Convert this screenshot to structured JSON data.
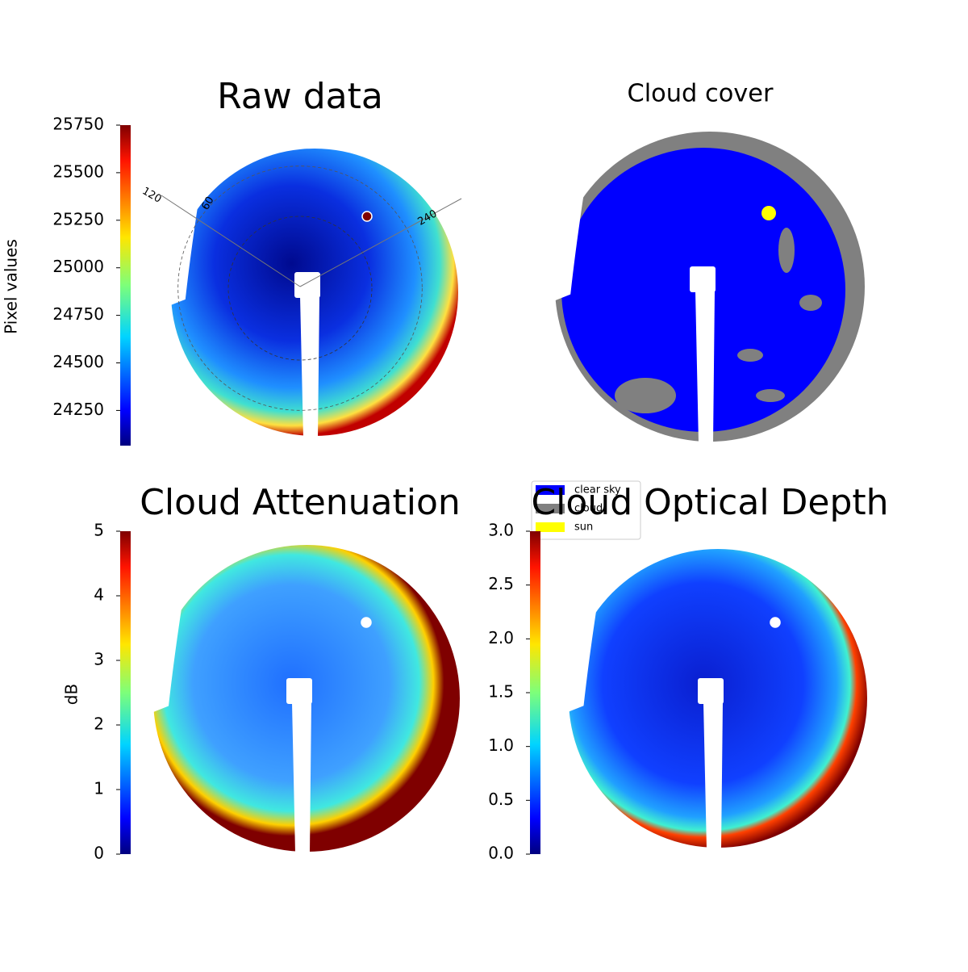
{
  "chart_data": [
    {
      "type": "colormap-image",
      "title": "Raw data",
      "colorbar_label": "Pixel values",
      "colormap": "jet",
      "ylim": [
        24065,
        25750
      ],
      "yticks": [
        24250,
        24500,
        24750,
        25000,
        25250,
        25500,
        25750
      ],
      "annotations": [
        "120",
        "60",
        "240"
      ]
    },
    {
      "type": "categorical-image",
      "title": "Cloud cover",
      "categories": [
        "clear sky",
        "cloud",
        "sun"
      ],
      "colors": [
        "#0000ff",
        "#808080",
        "#ffff00"
      ]
    },
    {
      "type": "colormap-image",
      "title": "Cloud Attenuation",
      "colorbar_label": "dB",
      "colormap": "jet",
      "ylim": [
        0,
        5
      ],
      "yticks": [
        0,
        1,
        2,
        3,
        4,
        5
      ]
    },
    {
      "type": "colormap-image",
      "title": "Cloud Optical Depth",
      "colormap": "jet",
      "ylim": [
        0,
        3
      ],
      "yticks": [
        {
          "value": 0,
          "label": "0.0"
        },
        {
          "value": 0.5,
          "label": "0.5"
        },
        {
          "value": 1,
          "label": "1.0"
        },
        {
          "value": 1.5,
          "label": "1.5"
        },
        {
          "value": 2,
          "label": "2.0"
        },
        {
          "value": 2.5,
          "label": "2.5"
        },
        {
          "value": 3,
          "label": "3.0"
        }
      ]
    }
  ]
}
